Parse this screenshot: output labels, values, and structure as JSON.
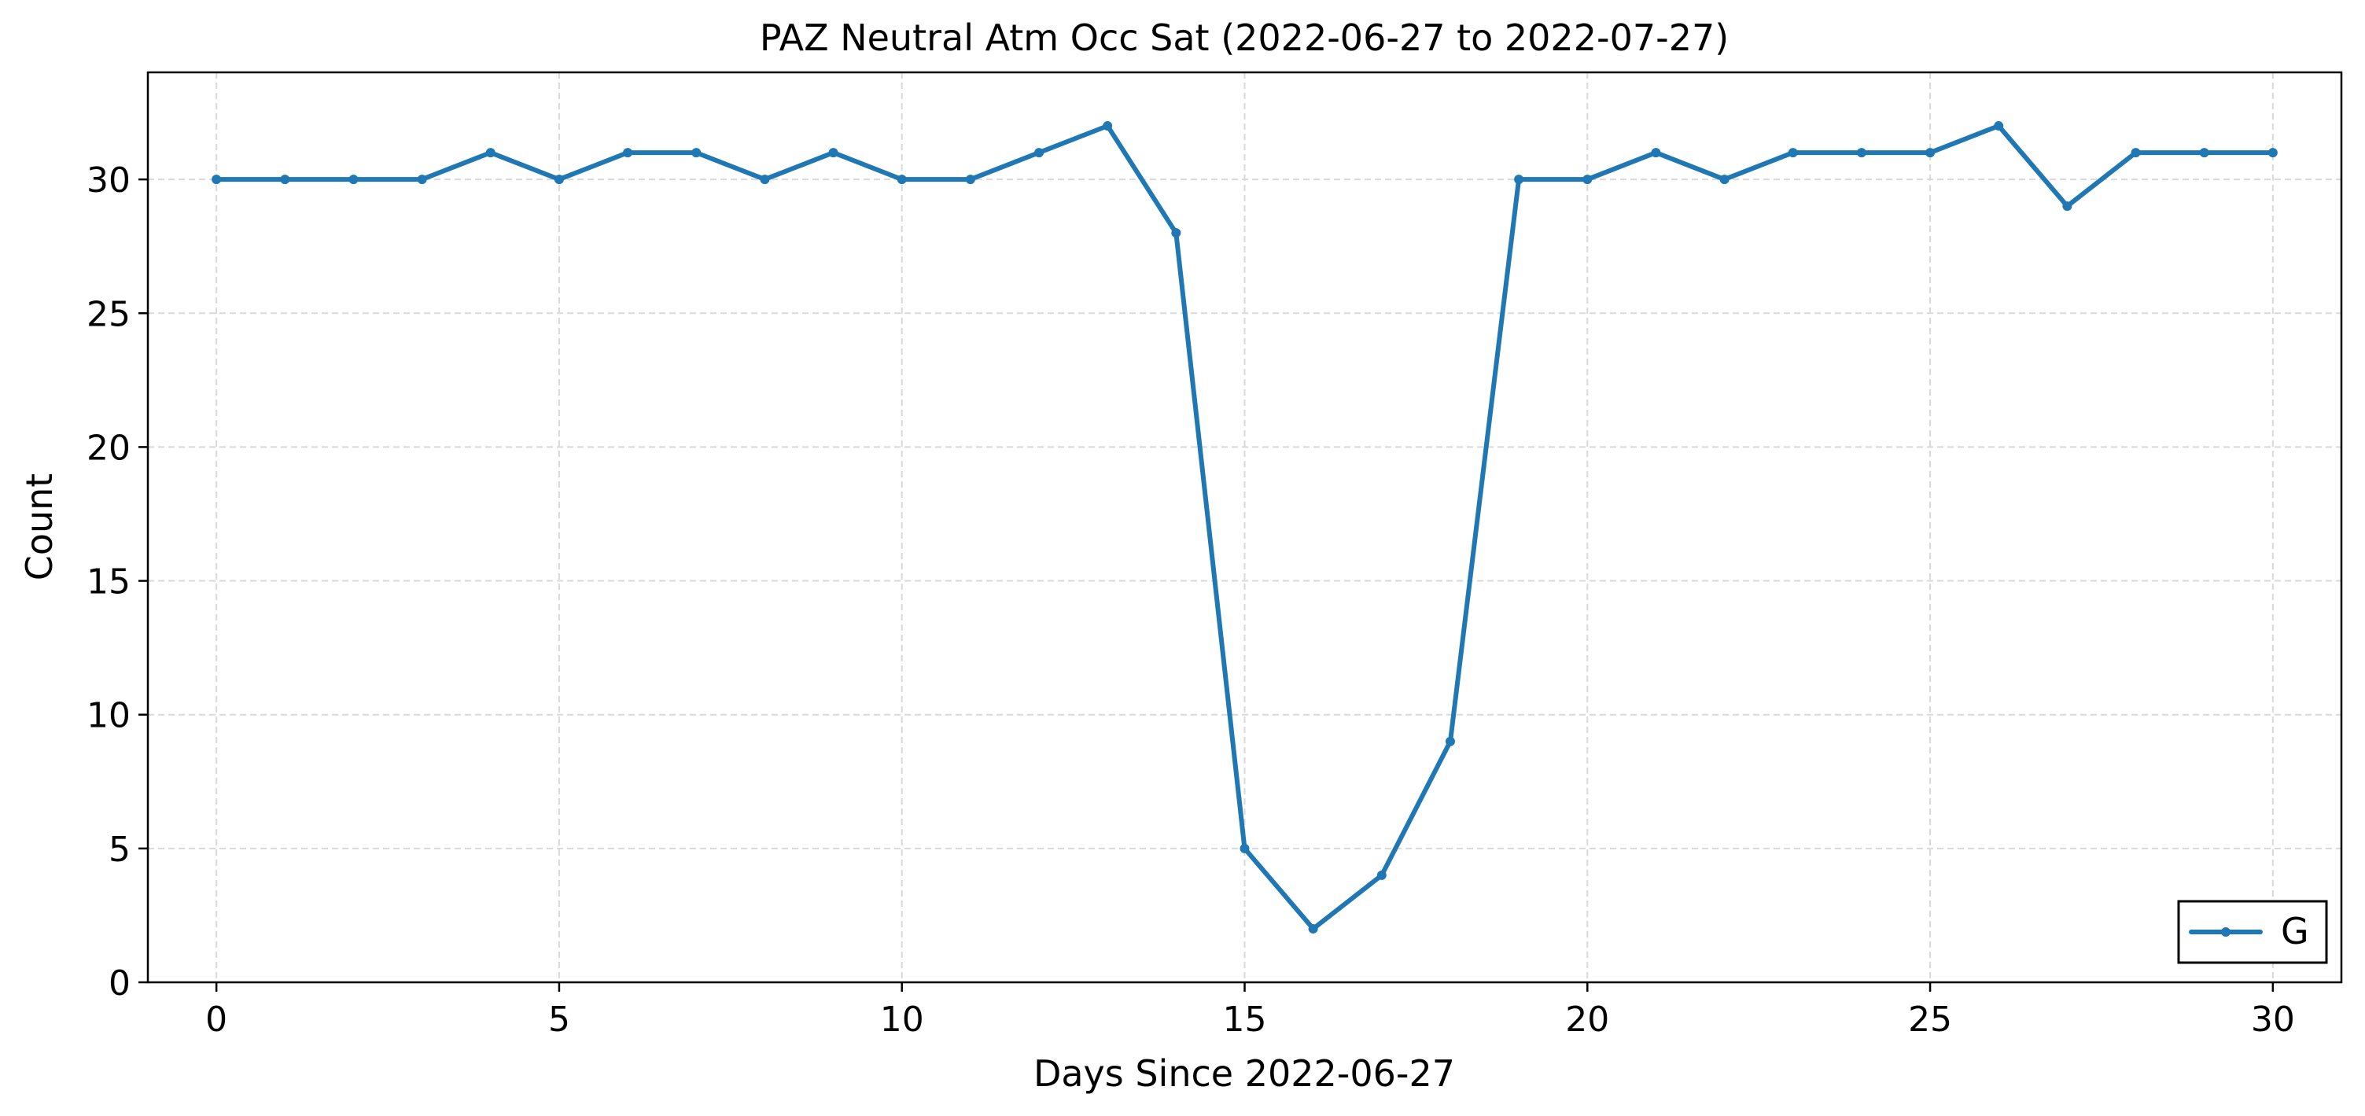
{
  "chart_data": {
    "type": "line",
    "title": "PAZ Neutral Atm Occ Sat (2022-06-27 to 2022-07-27)",
    "xlabel": "Days Since 2022-06-27",
    "ylabel": "Count",
    "xlim": [
      -1,
      31
    ],
    "ylim": [
      0,
      34
    ],
    "xticks": [
      0,
      5,
      10,
      15,
      20,
      25,
      30
    ],
    "yticks": [
      0,
      5,
      10,
      15,
      20,
      25,
      30
    ],
    "grid": true,
    "legend_position": "lower-right",
    "x": [
      0,
      1,
      2,
      3,
      4,
      5,
      6,
      7,
      8,
      9,
      10,
      11,
      12,
      13,
      14,
      15,
      16,
      17,
      18,
      19,
      20,
      21,
      22,
      23,
      24,
      25,
      26,
      27,
      28,
      29,
      30
    ],
    "series": [
      {
        "name": "G",
        "color": "#1f77b4",
        "values": [
          30,
          30,
          30,
          30,
          31,
          30,
          31,
          31,
          30,
          31,
          30,
          30,
          31,
          32,
          28,
          5,
          2,
          4,
          9,
          30,
          30,
          31,
          30,
          31,
          31,
          31,
          32,
          29,
          31,
          31,
          31
        ]
      }
    ]
  }
}
